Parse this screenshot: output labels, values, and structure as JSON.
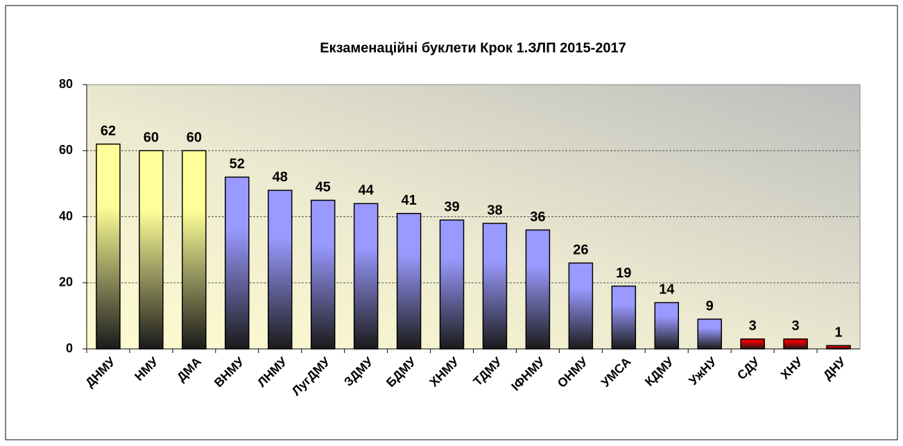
{
  "chart_data": {
    "type": "bar",
    "title": "Екзаменаційні буклети Крок 1.ЗЛП 2015-2017",
    "categories": [
      "ДНМУ",
      "НМУ",
      "ДМА",
      "ВНМУ",
      "ЛНМУ",
      "ЛугДМУ",
      "ЗДМУ",
      "БДМУ",
      "ХНМУ",
      "ТДМУ",
      "ІФНМУ",
      "ОНМУ",
      "УМСА",
      "КДМУ",
      "УжНУ",
      "СДУ",
      "ХНУ",
      "ДНУ"
    ],
    "values": [
      62,
      60,
      60,
      52,
      48,
      45,
      44,
      41,
      39,
      38,
      36,
      26,
      19,
      14,
      9,
      3,
      3,
      1
    ],
    "colors": [
      "#ffff99",
      "#ffff99",
      "#ffff99",
      "#9999ff",
      "#9999ff",
      "#9999ff",
      "#9999ff",
      "#9999ff",
      "#9999ff",
      "#9999ff",
      "#9999ff",
      "#9999ff",
      "#9999ff",
      "#9999ff",
      "#9999ff",
      "#dd0000",
      "#dd0000",
      "#dd0000"
    ],
    "ylim": [
      0,
      80
    ],
    "yticks": [
      0,
      20,
      40,
      60,
      80
    ],
    "grid": true
  }
}
